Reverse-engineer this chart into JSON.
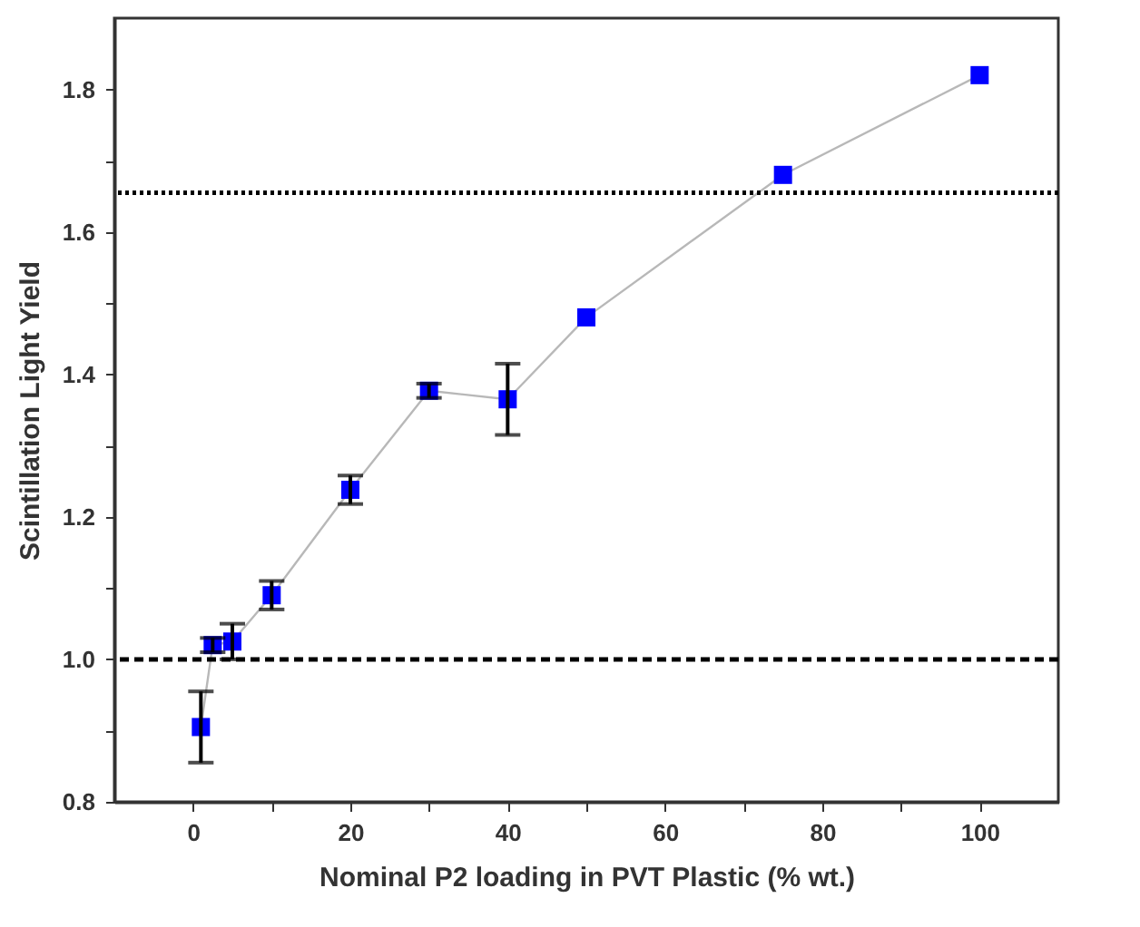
{
  "chart_data": {
    "type": "line",
    "xlabel": "Nominal P2 loading in PVT Plastic (% wt.)",
    "ylabel": "Scintillation Light Yield",
    "x": [
      1,
      2.5,
      5,
      10,
      20,
      30,
      40,
      50,
      75,
      100
    ],
    "series": [
      {
        "color": "#0000ff",
        "values": [
          0.905,
          1.02,
          1.025,
          1.09,
          1.238,
          1.377,
          1.365,
          1.48,
          1.68,
          1.82
        ],
        "errors": [
          0.05,
          0.01,
          0.025,
          0.02,
          0.02,
          0.01,
          0.05,
          null,
          null,
          null
        ]
      }
    ],
    "xlim": [
      -10,
      110
    ],
    "ylim": [
      0.8,
      1.9
    ],
    "xticks": [
      0,
      {
        "value": 10,
        "label": null
      },
      20,
      {
        "value": 30,
        "label": null
      },
      40,
      {
        "value": 50,
        "label": null
      },
      60,
      {
        "value": 70,
        "label": null
      },
      80,
      {
        "value": 90,
        "label": null
      },
      100
    ],
    "yticks": [
      {
        "value": 0.8,
        "label": "0.8"
      },
      {
        "value": 0.9,
        "label": null
      },
      {
        "value": 1.0,
        "label": "1.0"
      },
      {
        "value": 1.1,
        "label": null
      },
      {
        "value": 1.2,
        "label": "1.2"
      },
      {
        "value": 1.3,
        "label": null
      },
      {
        "value": 1.4,
        "label": "1.4"
      },
      {
        "value": 1.5,
        "label": null
      },
      {
        "value": 1.6,
        "label": "1.6"
      },
      {
        "value": 1.7,
        "label": null
      },
      {
        "value": 1.8,
        "label": "1.8"
      }
    ],
    "ref_lines": [
      {
        "axis": "y",
        "value": 1.0,
        "line_style": "dashed",
        "color": "#000000"
      },
      {
        "axis": "y",
        "value": 1.655,
        "line_style": "dotted",
        "color": "#000000"
      }
    ],
    "marker": "square",
    "grid": false
  }
}
